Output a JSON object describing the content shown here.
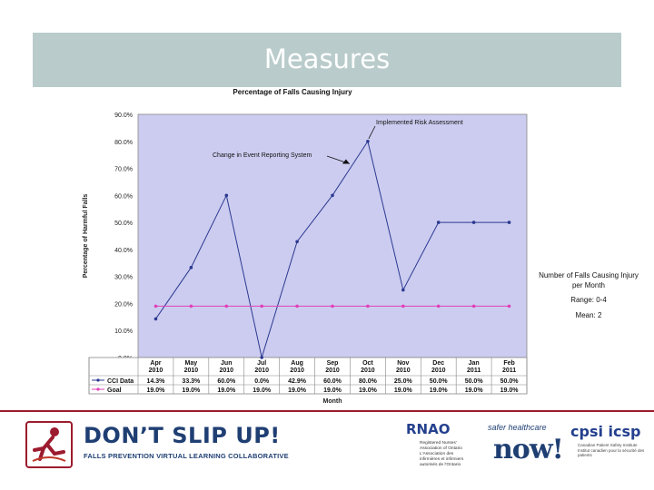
{
  "slide": {
    "title": "Measures"
  },
  "side_notes": {
    "measure": "Number of Falls Causing Injury per Month",
    "range": "Range: 0-4",
    "mean": "Mean: 2"
  },
  "chart_data": {
    "type": "line",
    "title": "Percentage of Falls Causing Injury",
    "xlabel": "Month",
    "ylabel": "Percentage of Harmful Falls",
    "ylim": [
      0,
      90
    ],
    "yticks": [
      "0.0%",
      "10.0%",
      "20.0%",
      "30.0%",
      "40.0%",
      "50.0%",
      "60.0%",
      "70.0%",
      "80.0%",
      "90.0%"
    ],
    "categories": [
      [
        "Apr",
        "2010"
      ],
      [
        "May",
        "2010"
      ],
      [
        "Jun",
        "2010"
      ],
      [
        "Jul",
        "2010"
      ],
      [
        "Aug",
        "2010"
      ],
      [
        "Sep",
        "2010"
      ],
      [
        "Oct",
        "2010"
      ],
      [
        "Nov",
        "2010"
      ],
      [
        "Dec",
        "2010"
      ],
      [
        "Jan",
        "2011"
      ],
      [
        "Feb",
        "2011"
      ]
    ],
    "series": [
      {
        "name": "CCI Data",
        "color": "#2b3990",
        "values": [
          14.3,
          33.3,
          60.0,
          0.0,
          42.9,
          60.0,
          80.0,
          25.0,
          50.0,
          50.0,
          50.0
        ],
        "labels": [
          "14.3%",
          "33.3%",
          "60.0%",
          "0.0%",
          "42.9%",
          "60.0%",
          "80.0%",
          "25.0%",
          "50.0%",
          "50.0%",
          "50.0%"
        ]
      },
      {
        "name": "Goal",
        "color": "#e040b8",
        "values": [
          19.0,
          19.0,
          19.0,
          19.0,
          19.0,
          19.0,
          19.0,
          19.0,
          19.0,
          19.0,
          19.0
        ],
        "labels": [
          "19.0%",
          "19.0%",
          "19.0%",
          "19.0%",
          "19.0%",
          "19.0%",
          "19.0%",
          "19.0%",
          "19.0%",
          "19.0%",
          "19.0%"
        ]
      }
    ],
    "annotations": [
      {
        "text": "Implemented Risk Assessment",
        "category_index": 6,
        "value": 80.0
      },
      {
        "text": "Change in Event Reporting System",
        "category_index": 6,
        "value": 70.0
      }
    ],
    "plot_background": "#ccccf0",
    "grid": false
  },
  "footer": {
    "campaign_title": "DON’T SLIP UP!",
    "campaign_subtitle": "FALLS PREVENTION VIRTUAL LEARNING COLLABORATIVE",
    "rnao_name": "RNAO",
    "rnao_line1": "Registered Nurses'",
    "rnao_line2": "Association of Ontario",
    "rnao_line3": "L'Association des",
    "rnao_line4": "infirmières et infirmiers",
    "rnao_line5": "autorisés de l'Ontario",
    "shc_line1": "safer healthcare",
    "shc_line2": "now!",
    "cpsi_name": "cpsi icsp",
    "cpsi_line1": "Canadian Patient Safety Institute",
    "cpsi_line2": "Institut canadien pour la sécurité des patients"
  }
}
